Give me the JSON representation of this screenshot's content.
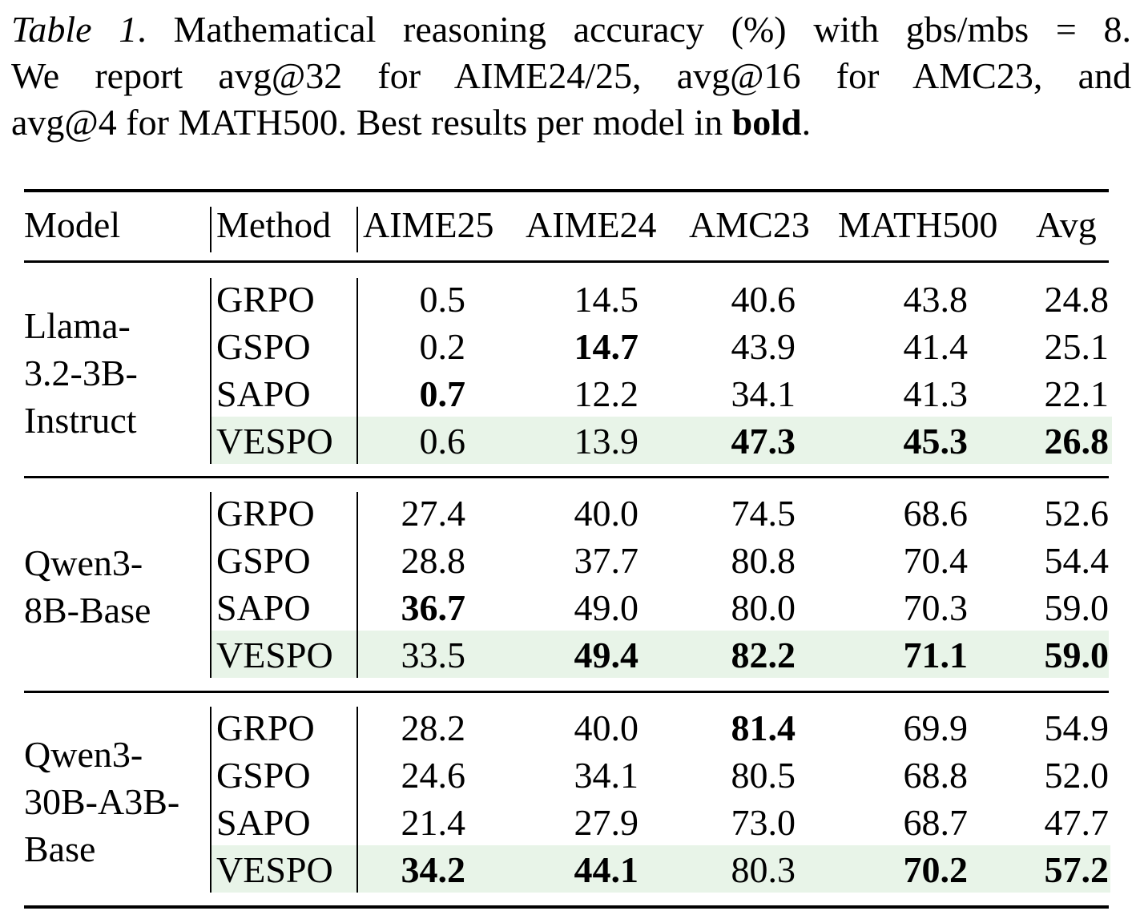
{
  "caption": {
    "label": "Table 1",
    "line1_rest": ". Mathematical reasoning accuracy (%) with gbs/mbs = 8.",
    "line2": "We report avg@32 for AIME24/25, avg@16 for AMC23, and",
    "line3_pre": "avg@4 for MATH500. Best results per model in ",
    "line3_bold": "bold",
    "line3_post": "."
  },
  "table": {
    "headers": [
      "Model",
      "Method",
      "AIME25",
      "AIME24",
      "AMC23",
      "MATH500",
      "Avg"
    ],
    "highlight_color": "#e8f4e8",
    "groups": [
      {
        "model_lines": [
          "Llama-",
          "3.2-3B-",
          "Instruct"
        ],
        "rows": [
          {
            "method": "GRPO",
            "values": [
              "0.5",
              "14.5",
              "40.6",
              "43.8",
              "24.8"
            ],
            "bold": [
              false,
              false,
              false,
              false,
              false
            ]
          },
          {
            "method": "GSPO",
            "values": [
              "0.2",
              "14.7",
              "43.9",
              "41.4",
              "25.1"
            ],
            "bold": [
              false,
              true,
              false,
              false,
              false
            ]
          },
          {
            "method": "SAPO",
            "values": [
              "0.7",
              "12.2",
              "34.1",
              "41.3",
              "22.1"
            ],
            "bold": [
              true,
              false,
              false,
              false,
              false
            ]
          },
          {
            "method": "VESPO",
            "values": [
              "0.6",
              "13.9",
              "47.3",
              "45.3",
              "26.8"
            ],
            "bold": [
              false,
              false,
              true,
              true,
              true
            ]
          }
        ]
      },
      {
        "model_lines": [
          "Qwen3-",
          "8B-Base"
        ],
        "rows": [
          {
            "method": "GRPO",
            "values": [
              "27.4",
              "40.0",
              "74.5",
              "68.6",
              "52.6"
            ],
            "bold": [
              false,
              false,
              false,
              false,
              false
            ]
          },
          {
            "method": "GSPO",
            "values": [
              "28.8",
              "37.7",
              "80.8",
              "70.4",
              "54.4"
            ],
            "bold": [
              false,
              false,
              false,
              false,
              false
            ]
          },
          {
            "method": "SAPO",
            "values": [
              "36.7",
              "49.0",
              "80.0",
              "70.3",
              "59.0"
            ],
            "bold": [
              true,
              false,
              false,
              false,
              false
            ]
          },
          {
            "method": "VESPO",
            "values": [
              "33.5",
              "49.4",
              "82.2",
              "71.1",
              "59.0"
            ],
            "bold": [
              false,
              true,
              true,
              true,
              true
            ]
          }
        ]
      },
      {
        "model_lines": [
          "Qwen3-",
          "30B-A3B-",
          "Base"
        ],
        "rows": [
          {
            "method": "GRPO",
            "values": [
              "28.2",
              "40.0",
              "81.4",
              "69.9",
              "54.9"
            ],
            "bold": [
              false,
              false,
              true,
              false,
              false
            ]
          },
          {
            "method": "GSPO",
            "values": [
              "24.6",
              "34.1",
              "80.5",
              "68.8",
              "52.0"
            ],
            "bold": [
              false,
              false,
              false,
              false,
              false
            ]
          },
          {
            "method": "SAPO",
            "values": [
              "21.4",
              "27.9",
              "73.0",
              "68.7",
              "47.7"
            ],
            "bold": [
              false,
              false,
              false,
              false,
              false
            ]
          },
          {
            "method": "VESPO",
            "values": [
              "34.2",
              "44.1",
              "80.3",
              "70.2",
              "57.2"
            ],
            "bold": [
              true,
              true,
              false,
              true,
              true
            ]
          }
        ]
      }
    ]
  }
}
